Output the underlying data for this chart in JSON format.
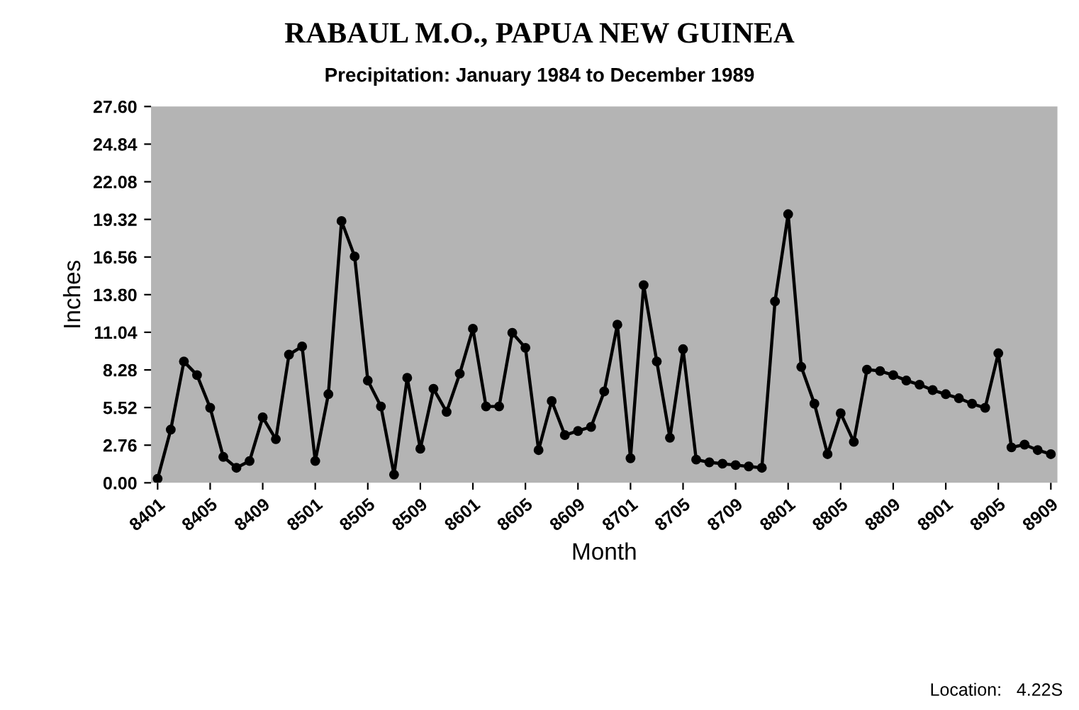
{
  "chart_data": {
    "type": "line",
    "title": "RABAUL M.O., PAPUA NEW GUINEA",
    "subtitle": "Precipitation: January 1984 to December 1989",
    "xlabel": "Month",
    "ylabel": "Inches",
    "categories": [
      "8401",
      null,
      null,
      null,
      "8405",
      null,
      null,
      null,
      "8409",
      null,
      null,
      null,
      "8501",
      null,
      null,
      null,
      "8505",
      null,
      null,
      null,
      "8509",
      null,
      null,
      null,
      "8601",
      null,
      null,
      null,
      "8605",
      null,
      null,
      null,
      "8609",
      null,
      null,
      null,
      "8701",
      null,
      null,
      null,
      "8705",
      null,
      null,
      null,
      "8709",
      null,
      null,
      null,
      "8801",
      null,
      null,
      null,
      "8805",
      null,
      null,
      null,
      "8809",
      null,
      null,
      null,
      "8901",
      null,
      null,
      null,
      "8905",
      null,
      null,
      null,
      "8909"
    ],
    "series": [
      {
        "color": "#000000",
        "values": [
          0.3,
          3.9,
          8.9,
          7.9,
          5.5,
          1.9,
          1.1,
          1.6,
          4.8,
          3.2,
          9.4,
          10.0,
          1.6,
          6.5,
          19.2,
          16.6,
          7.5,
          5.6,
          0.6,
          7.7,
          2.5,
          6.9,
          5.2,
          8.0,
          11.3,
          5.6,
          5.6,
          11.0,
          9.9,
          2.4,
          6.0,
          3.5,
          3.8,
          4.1,
          6.7,
          11.6,
          1.8,
          14.5,
          8.9,
          3.3,
          9.8,
          1.7,
          1.5,
          1.4,
          1.3,
          1.2,
          1.1,
          13.3,
          19.7,
          8.5,
          5.8,
          2.1,
          5.1,
          3.0,
          8.3,
          8.2,
          7.9,
          7.5,
          7.2,
          6.8,
          6.5,
          6.2,
          5.8,
          5.5,
          9.5,
          2.6,
          2.8,
          2.4,
          2.1
        ]
      }
    ],
    "ylim": [
      0,
      27.6
    ],
    "yticks": [
      {
        "value": 0,
        "label": "0.00"
      },
      {
        "value": 2.76,
        "label": "2.76"
      },
      {
        "value": 5.52,
        "label": "5.52"
      },
      {
        "value": 8.28,
        "label": "8.28"
      },
      {
        "value": 11.04,
        "label": "11.04"
      },
      {
        "value": 13.8,
        "label": "13.80"
      },
      {
        "value": 16.56,
        "label": "16.56"
      },
      {
        "value": 19.32,
        "label": "19.32"
      },
      {
        "value": 22.08,
        "label": "22.08"
      },
      {
        "value": 24.84,
        "label": "24.84"
      },
      {
        "value": 27.6,
        "label": "27.60"
      }
    ],
    "grid": false,
    "marker": "circle",
    "line_style": "solid",
    "annotations": [
      "Location:   4.22S"
    ]
  }
}
